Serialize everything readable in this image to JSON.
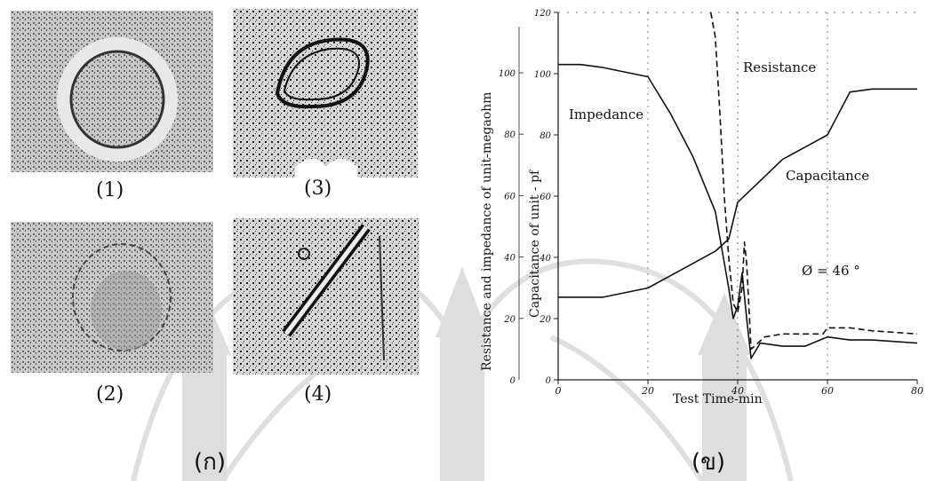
{
  "panels": [
    {
      "label": "(ก)"
    },
    {
      "label": "(ข)"
    }
  ],
  "micrographs": [
    {
      "caption": "(1)"
    },
    {
      "caption": "(2)"
    },
    {
      "caption": "(3)"
    },
    {
      "caption": "(4)"
    }
  ],
  "chart_data": {
    "type": "line",
    "xlabel": "Test Time-min",
    "ylabel_left": "Resistance and impedance of unit-megaohm",
    "ylabel_right": "Capacitance of unit - pf",
    "xlim": [
      0,
      80
    ],
    "ylim": [
      0,
      120
    ],
    "x_ticks": [
      "0",
      "20",
      "40",
      "60",
      "80"
    ],
    "y_ticks_left": [
      "0",
      "20",
      "40",
      "60",
      "80",
      "100",
      "120"
    ],
    "y_ticks_left_inner": [
      "20",
      "40",
      "60",
      "80",
      "100"
    ],
    "annotations": [
      {
        "text": "Resistance"
      },
      {
        "text": "Impedance"
      },
      {
        "text": "Capacitance"
      },
      {
        "text": "Ø = 46 °"
      }
    ],
    "series": [
      {
        "name": "Resistance",
        "style": "dashed",
        "points": [
          [
            34,
            120
          ],
          [
            35,
            112
          ],
          [
            36,
            88
          ],
          [
            37,
            60
          ],
          [
            38,
            40
          ],
          [
            39,
            25
          ],
          [
            40,
            22
          ],
          [
            41,
            30
          ],
          [
            41.5,
            45
          ],
          [
            42,
            38
          ],
          [
            43,
            10
          ],
          [
            46,
            14
          ],
          [
            50,
            15
          ],
          [
            55,
            15
          ],
          [
            59,
            15
          ],
          [
            60,
            17
          ],
          [
            65,
            17
          ],
          [
            70,
            16
          ],
          [
            80,
            15
          ]
        ]
      },
      {
        "name": "Impedance",
        "style": "solid",
        "points": [
          [
            0,
            103
          ],
          [
            5,
            103
          ],
          [
            10,
            102
          ],
          [
            20,
            99
          ],
          [
            25,
            87
          ],
          [
            30,
            73
          ],
          [
            35,
            55
          ],
          [
            38,
            30
          ],
          [
            39,
            20
          ],
          [
            40,
            24
          ],
          [
            41,
            35
          ],
          [
            42,
            20
          ],
          [
            43,
            7
          ],
          [
            45,
            12
          ],
          [
            50,
            11
          ],
          [
            55,
            11
          ],
          [
            60,
            14
          ],
          [
            65,
            13
          ],
          [
            70,
            13
          ],
          [
            80,
            12
          ]
        ]
      },
      {
        "name": "Capacitance",
        "style": "solid",
        "points": [
          [
            0,
            27
          ],
          [
            10,
            27
          ],
          [
            20,
            30
          ],
          [
            25,
            34
          ],
          [
            30,
            38
          ],
          [
            35,
            42
          ],
          [
            38,
            46
          ],
          [
            40,
            58
          ],
          [
            45,
            65
          ],
          [
            50,
            72
          ],
          [
            55,
            76
          ],
          [
            60,
            80
          ],
          [
            65,
            94
          ],
          [
            70,
            95
          ],
          [
            80,
            95
          ]
        ]
      }
    ]
  }
}
